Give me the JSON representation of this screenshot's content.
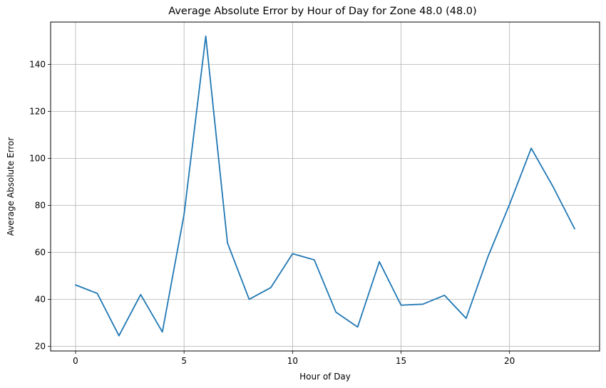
{
  "chart_data": {
    "type": "line",
    "title": "Average Absolute Error by Hour of Day for Zone 48.0 (48.0)",
    "xlabel": "Hour of Day",
    "ylabel": "Average Absolute Error",
    "xlim": [
      -1.15,
      24.15
    ],
    "ylim": [
      18.0,
      158.0
    ],
    "xticks": [
      0,
      5,
      10,
      15,
      20
    ],
    "yticks": [
      20,
      40,
      60,
      80,
      100,
      120,
      140
    ],
    "grid": true,
    "line_color": "#1f77b4",
    "series": [
      {
        "x": [
          0,
          1,
          2,
          3,
          4,
          5,
          6,
          7,
          8,
          9,
          10,
          11,
          12,
          13,
          14,
          15,
          16,
          17,
          18,
          19,
          20,
          21,
          22,
          23
        ],
        "values": [
          46.1,
          42.5,
          24.5,
          42.0,
          26.1,
          76.1,
          152.0,
          64.0,
          40.0,
          45.0,
          59.4,
          56.8,
          34.5,
          28.2,
          56.0,
          37.5,
          37.9,
          41.7,
          31.9,
          58.0,
          80.4,
          104.3,
          88.0,
          70.0
        ]
      }
    ]
  }
}
